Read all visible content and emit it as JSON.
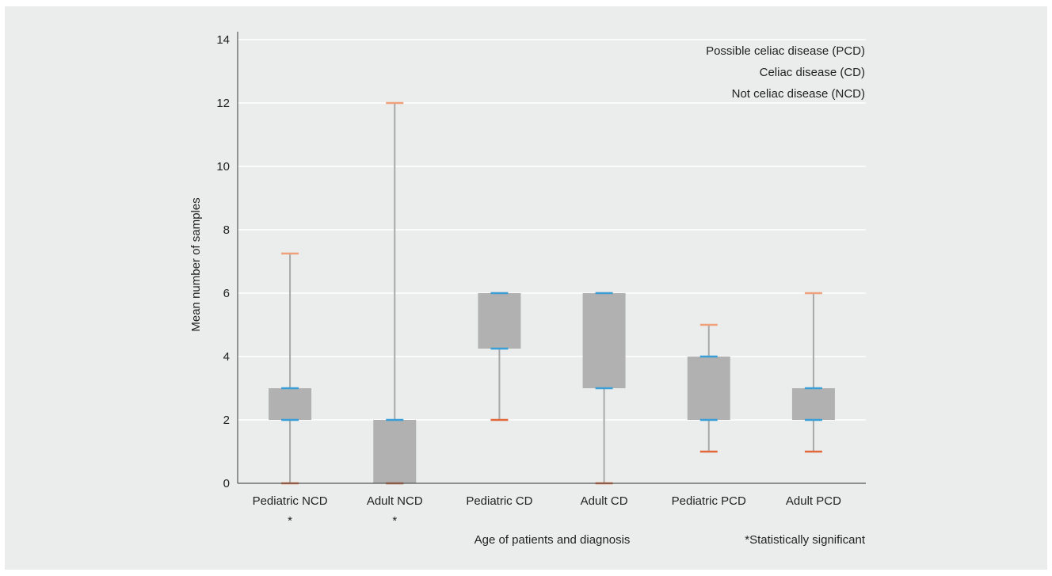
{
  "chart_data": {
    "type": "boxplot",
    "title": "",
    "xlabel": "Age of patients and diagnosis",
    "ylabel": "Mean number of samples",
    "ylim": [
      0,
      14
    ],
    "yticks": [
      0,
      2,
      4,
      6,
      8,
      10,
      12,
      14
    ],
    "grid": true,
    "categories": [
      "Pediatric NCD",
      "Adult NCD",
      "Pediatric CD",
      "Adult CD",
      "Pediatric PCD",
      "Adult PCD"
    ],
    "significance_marks": [
      "*",
      "*",
      "",
      "",
      "",
      ""
    ],
    "boxes": [
      {
        "category": "Pediatric NCD",
        "min": 0,
        "q1": 2,
        "q3": 3,
        "max": 7.25
      },
      {
        "category": "Adult NCD",
        "min": 0,
        "q1": 0,
        "q3": 2,
        "max": 12
      },
      {
        "category": "Pediatric CD",
        "min": 2,
        "q1": 4.25,
        "q3": 6,
        "max": 6
      },
      {
        "category": "Adult CD",
        "min": 0,
        "q1": 3,
        "q3": 6,
        "max": 6
      },
      {
        "category": "Pediatric PCD",
        "min": 1,
        "q1": 2,
        "q3": 4,
        "max": 5
      },
      {
        "category": "Adult PCD",
        "min": 1,
        "q1": 2,
        "q3": 3,
        "max": 6
      }
    ],
    "legend": {
      "placement": "top-right",
      "entries": [
        "Possible celiac disease (PCD)",
        "Celiac disease (CD)",
        "Not celiac disease (NCD)"
      ]
    },
    "footnote": "*Statistically significant",
    "colors": {
      "background": "#ebedec",
      "grid": "#ffffff",
      "box": "#b1b1b1",
      "whisker": "#a8a8a8",
      "quartile_cap": "#3a9fd8",
      "max_cap": "#f0a07a",
      "min_cap": "#e0683a",
      "axis": "#555555"
    }
  }
}
